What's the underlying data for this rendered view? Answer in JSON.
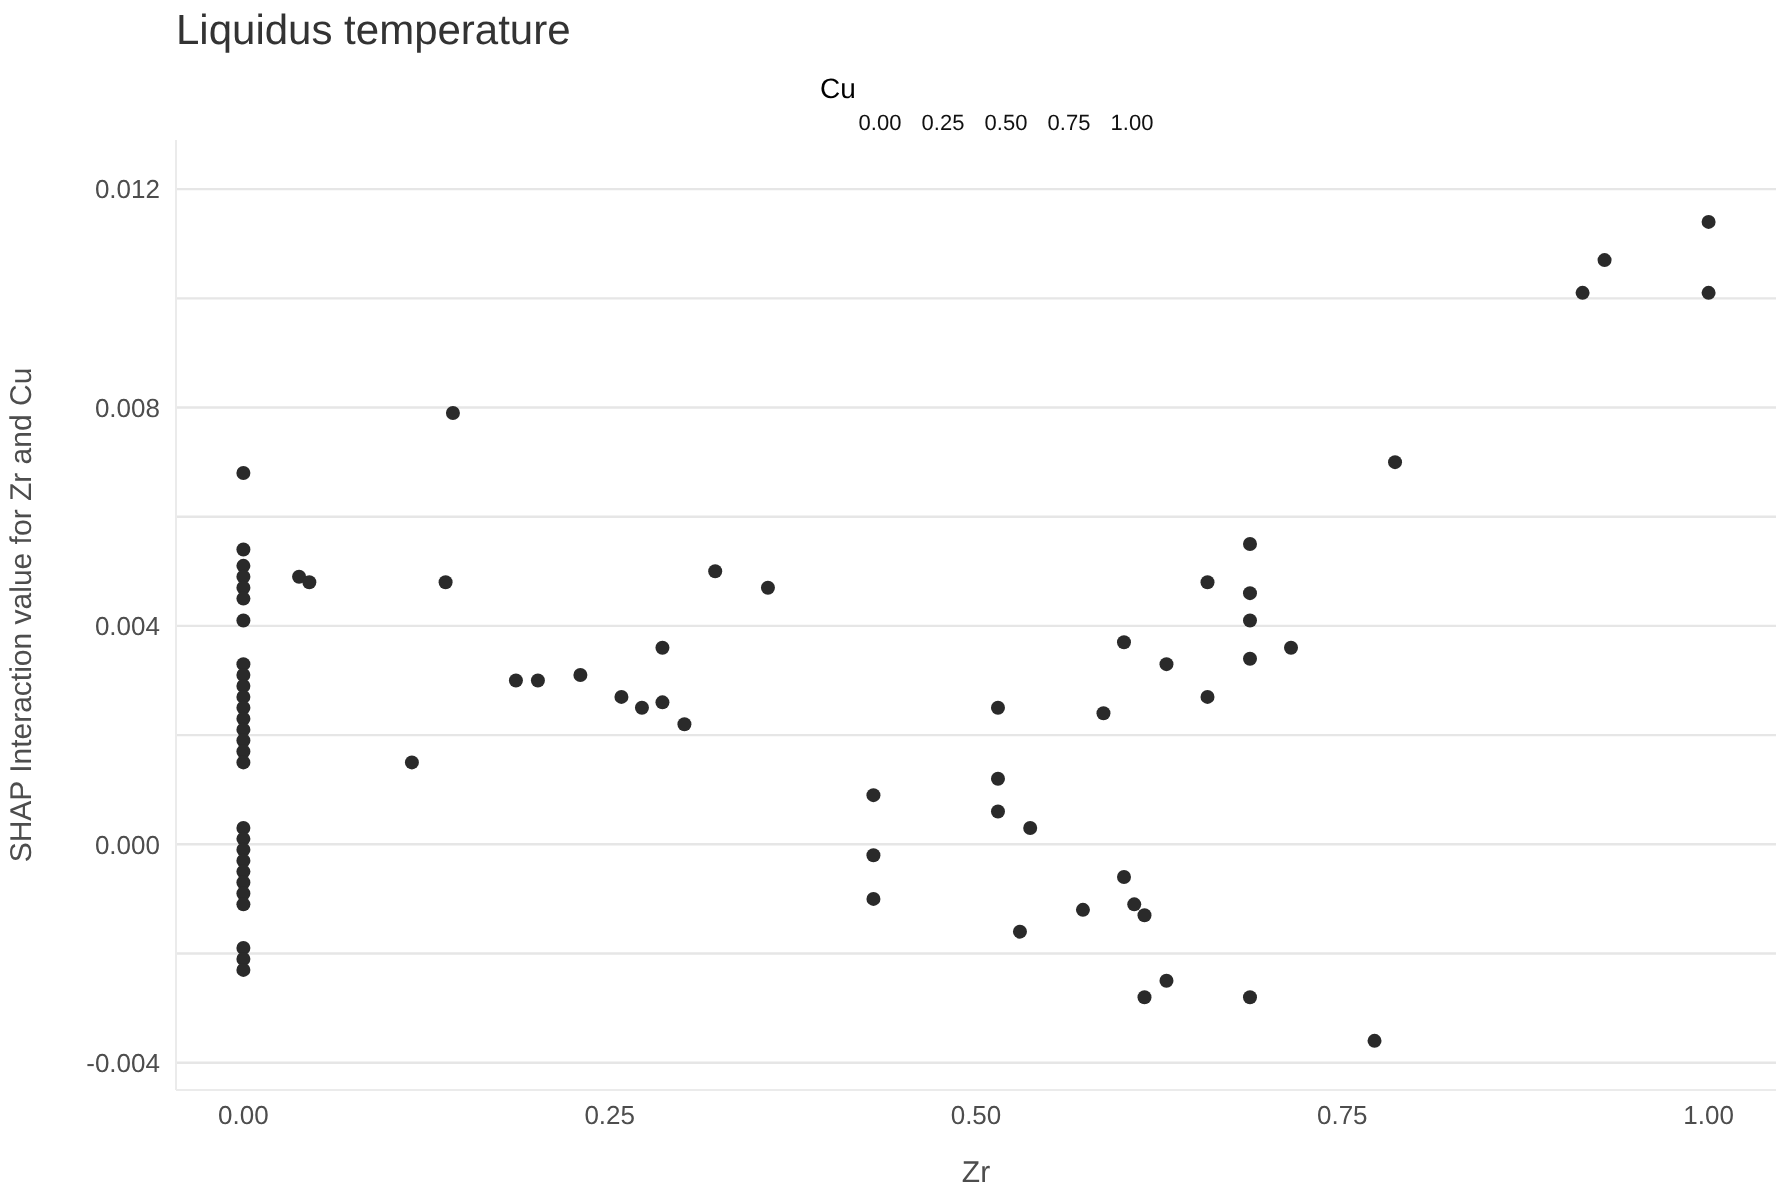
{
  "chart_data": {
    "type": "scatter",
    "title": "Liquidus temperature",
    "xlabel": "Zr",
    "ylabel": "SHAP Interaction value for Zr and Cu",
    "legend_title": "Cu",
    "annotations": [
      "0.00",
      "0.25",
      "0.50",
      "0.75",
      "1.00"
    ],
    "xlim": [
      -0.046,
      1.046
    ],
    "ylim": [
      -0.0045,
      0.0129
    ],
    "xticks": [
      {
        "value": 0,
        "label": "0.00"
      },
      {
        "value": 0.25,
        "label": "0.25"
      },
      {
        "value": 0.5,
        "label": "0.50"
      },
      {
        "value": 0.75,
        "label": "0.75"
      },
      {
        "value": 1,
        "label": "1.00"
      }
    ],
    "yticks": [
      {
        "value": -0.004,
        "label": "-0.004"
      },
      {
        "value": -0.002,
        "label": null
      },
      {
        "value": 0,
        "label": "0.000"
      },
      {
        "value": 0.002,
        "label": null
      },
      {
        "value": 0.004,
        "label": "0.004"
      },
      {
        "value": 0.006,
        "label": null
      },
      {
        "value": 0.008,
        "label": "0.008"
      },
      {
        "value": 0.01,
        "label": null
      },
      {
        "value": 0.012,
        "label": "0.012"
      }
    ],
    "grid": "y",
    "marker": "circle",
    "series": [
      {
        "color": "#2a2a2a",
        "x": [
          0,
          0,
          0,
          0,
          0,
          0,
          0,
          0,
          0,
          0,
          0,
          0,
          0,
          0,
          0,
          0,
          0,
          0,
          0,
          0,
          0,
          0,
          0,
          0,
          0,
          0,
          0,
          0,
          0.038,
          0.045,
          0.115,
          0.143,
          0.138,
          0.186,
          0.201,
          0.23,
          0.258,
          0.272,
          0.286,
          0.286,
          0.301,
          0.322,
          0.358,
          0.687,
          0.658,
          0.687,
          0.687,
          0.601,
          0.715,
          0.63,
          0.687,
          0.658,
          0.515,
          0.587,
          0.43,
          0.515,
          0.515,
          0.537,
          0.43,
          0.43,
          0.601,
          0.573,
          0.608,
          0.615,
          0.53,
          0.63,
          0.615,
          0.687,
          0.772,
          0.786,
          0.914,
          0.929,
          1,
          1
        ],
        "values": [
          0.0068,
          0.0054,
          0.0051,
          0.0049,
          0.0047,
          0.0045,
          0.0041,
          0.0033,
          0.0031,
          0.0029,
          0.0027,
          0.0025,
          0.0023,
          0.0021,
          0.0019,
          0.0017,
          0.0015,
          0.0003,
          0.0001,
          -0.0001,
          -0.0003,
          -0.0005,
          -0.0007,
          -0.0009,
          -0.0011,
          -0.0019,
          -0.0021,
          -0.0023,
          0.0049,
          0.0048,
          0.0015,
          0.0079,
          0.0048,
          0.003,
          0.003,
          0.0031,
          0.0027,
          0.0025,
          0.0036,
          0.0026,
          0.0022,
          0.005,
          0.0047,
          0.0055,
          0.0048,
          0.0046,
          0.0041,
          0.0037,
          0.0036,
          0.0033,
          0.0034,
          0.0027,
          0.0025,
          0.0024,
          0.0009,
          0.0012,
          0.0006,
          0.0003,
          -0.0002,
          -0.001,
          -0.0006,
          -0.0012,
          -0.0011,
          -0.0013,
          -0.0016,
          -0.0025,
          -0.0028,
          -0.0028,
          -0.0036,
          0.007,
          0.0101,
          0.0107,
          0.0114,
          0.0101
        ]
      }
    ]
  }
}
